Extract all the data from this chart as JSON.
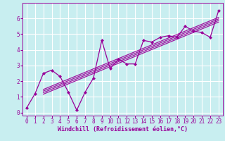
{
  "xlabel": "Windchill (Refroidissement éolien,°C)",
  "bg_color": "#c8eef0",
  "line_color": "#990099",
  "grid_color": "#ffffff",
  "xlim": [
    -0.5,
    23.5
  ],
  "ylim": [
    -0.2,
    7.0
  ],
  "xticks": [
    0,
    1,
    2,
    3,
    4,
    5,
    6,
    7,
    8,
    9,
    10,
    11,
    12,
    13,
    14,
    15,
    16,
    17,
    18,
    19,
    20,
    21,
    22,
    23
  ],
  "yticks": [
    0,
    1,
    2,
    3,
    4,
    5,
    6
  ],
  "scatter_x": [
    0,
    1,
    2,
    3,
    4,
    5,
    6,
    7,
    8,
    9,
    10,
    11,
    12,
    13,
    14,
    15,
    16,
    17,
    18,
    19,
    20,
    21,
    22,
    23
  ],
  "scatter_y": [
    0.3,
    1.2,
    2.5,
    2.7,
    2.3,
    1.3,
    0.15,
    1.3,
    2.2,
    4.6,
    2.8,
    3.4,
    3.1,
    3.1,
    4.6,
    4.5,
    4.8,
    4.9,
    4.8,
    5.5,
    5.2,
    5.1,
    4.8,
    6.5
  ],
  "trend_offsets": [
    -0.15,
    -0.05,
    0.05,
    0.15
  ],
  "xlabel_fontsize": 6.0,
  "tick_fontsize": 5.5
}
